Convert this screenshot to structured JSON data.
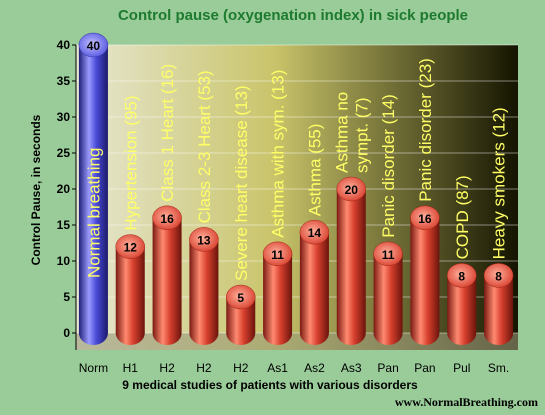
{
  "chart_data": {
    "type": "bar",
    "title": "Control pause (oxygenation index) in sick people",
    "ylabel": "Control Pause, in seconds",
    "xlabel": "9 medical studies of patients with various disorders",
    "ylim": [
      0,
      40
    ],
    "yticks": [
      0,
      5,
      10,
      15,
      20,
      25,
      30,
      35,
      40
    ],
    "grid": true,
    "categories": [
      "Norm",
      "H1",
      "H2",
      "H2",
      "H2",
      "As1",
      "As2",
      "As3",
      "Pan",
      "Pan",
      "Pul",
      "Sm."
    ],
    "values": [
      40,
      12,
      16,
      13,
      5,
      11,
      14,
      20,
      11,
      16,
      8,
      8
    ],
    "bar_labels": [
      "Normal breathing",
      "Hypertension (95)",
      "Class 1 Heart (16)",
      "Class 2-3 Heart (53)",
      "Severe heart disease (13)",
      "Asthma with sym. (13)",
      "Asthma (55)",
      "Asthma no sympt. (7)",
      "Panic disorder (14)",
      "Panic disorder (23)",
      "COPD (87)",
      "Heavy smokers (12)"
    ],
    "colors": {
      "highlight": "#4a4ad8",
      "bars": "#d23c2c",
      "label_text": "#ffff66",
      "title": "#1e7a2e"
    }
  },
  "footer": {
    "source": "www.NormalBreathing.com"
  }
}
